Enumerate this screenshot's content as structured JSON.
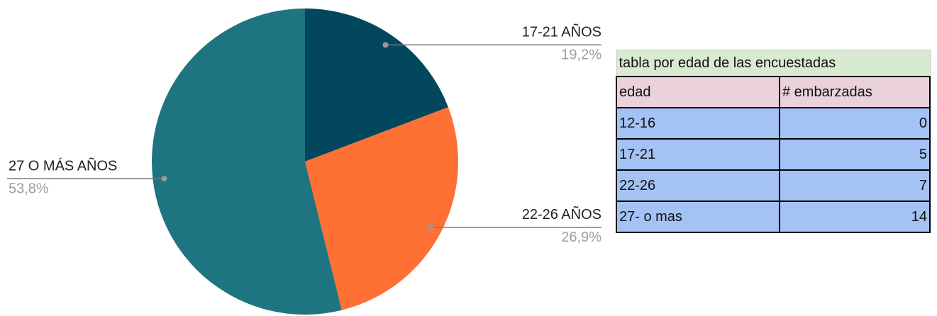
{
  "chart_data": {
    "type": "pie",
    "categories": [
      "17-21 AÑOS",
      "22-26 AÑOS",
      "27 O MÁS AÑOS"
    ],
    "values": [
      19.2,
      26.9,
      53.8
    ],
    "value_labels": [
      "19,2%",
      "26,9%",
      "53,8%"
    ],
    "colors": [
      "#02475e",
      "#fe7033",
      "#1f7482"
    ]
  },
  "table": {
    "title": "tabla por edad de las encuestadas",
    "header": [
      "edad",
      "# embarzadas"
    ],
    "rows": [
      [
        "12-16",
        0
      ],
      [
        "17-21",
        5
      ],
      [
        "22-26",
        7
      ],
      [
        "27- o mas",
        14
      ]
    ]
  }
}
